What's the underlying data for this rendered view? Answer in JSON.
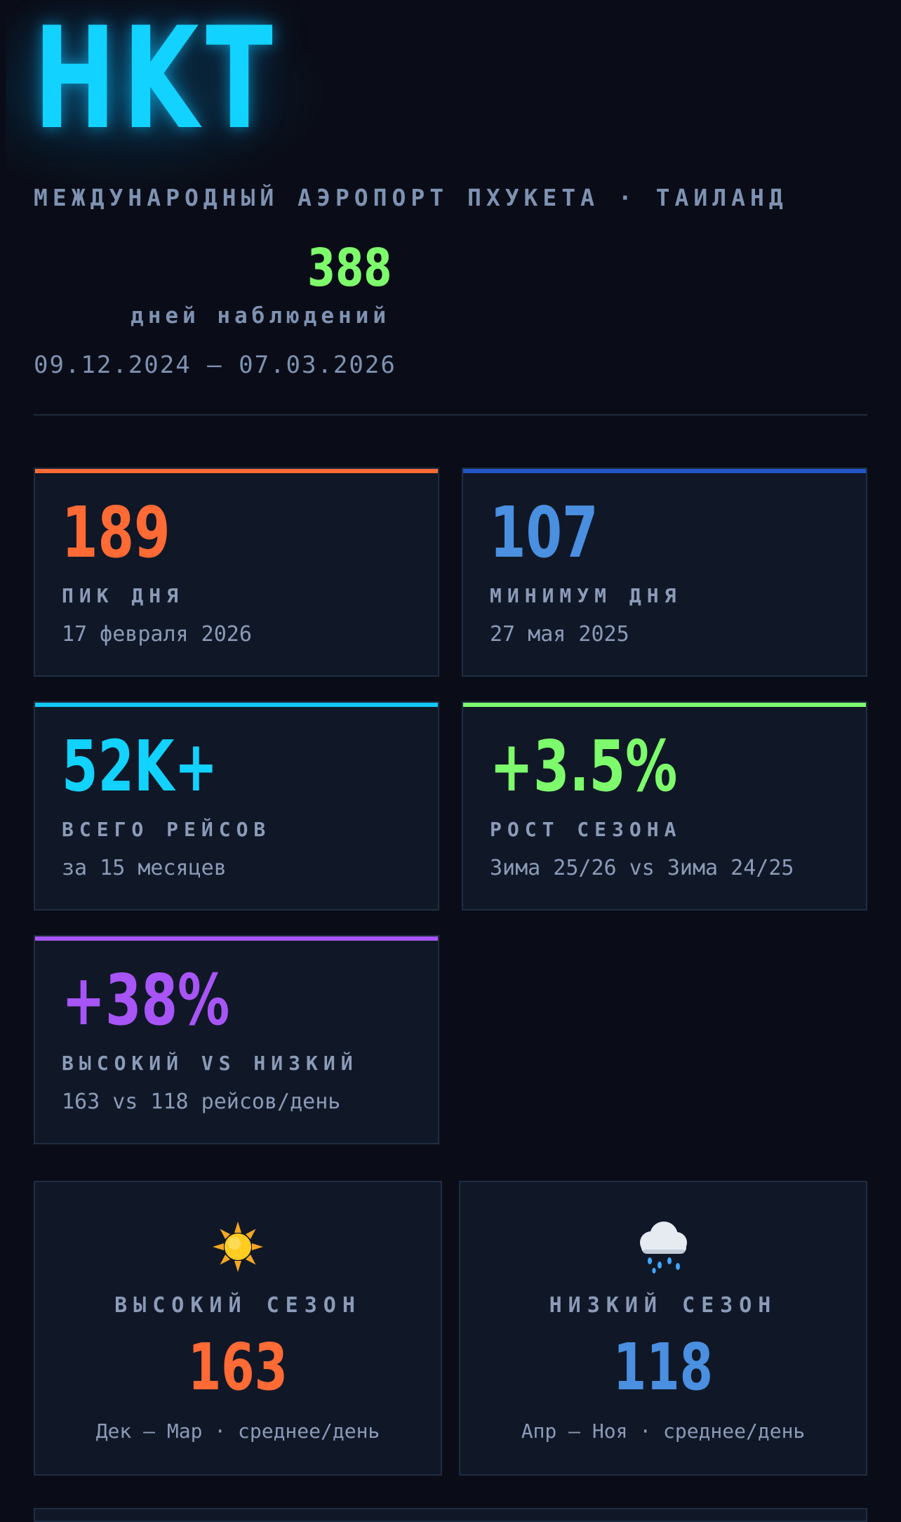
{
  "header": {
    "code": "HKT",
    "subtitle": "МЕЖДУНАРОДНЫЙ АЭРОПОРТ ПХУКЕТА · ТАИЛАНД",
    "days_count": "388",
    "days_label": "дней наблюдений",
    "period": "09.12.2024 — 07.03.2026"
  },
  "colors": {
    "background": "#0a0d17",
    "card": "#101827",
    "accent_cyan": "#12d2ff",
    "accent_green": "#7dfb6c",
    "accent_orange": "#ff6a35",
    "accent_blue": "#4a8fe0",
    "accent_purple": "#a855f7"
  },
  "stats": [
    {
      "value": "189",
      "label": "ПИК ДНЯ",
      "sub": "17 февраля 2026",
      "color": "#ff6a35",
      "bar": "#ff6a35"
    },
    {
      "value": "107",
      "label": "МИНИМУМ ДНЯ",
      "sub": "27 мая 2025",
      "color": "#4a8fe0",
      "bar": "#2456c8"
    },
    {
      "value": "52K+",
      "label": "ВСЕГО РЕЙСОВ",
      "sub": "за 15 месяцев",
      "color": "#12d2ff",
      "bar": "#12c8f5"
    },
    {
      "value": "+3.5%",
      "label": "РОСТ СЕЗОНА",
      "sub": "Зима 25/26 vs Зима 24/25",
      "color": "#7dfb6c",
      "bar": "#7dfb6c"
    },
    {
      "value": "+38%",
      "label": "ВЫСОКИЙ VS НИЗКИЙ",
      "sub": "163 vs 118 рейсов/день",
      "color": "#a855f7",
      "bar": "#a855f7"
    }
  ],
  "seasons": [
    {
      "icon": "sun-icon",
      "title": "ВЫСОКИЙ СЕЗОН",
      "value": "163",
      "sub": "Дек — Мар · среднее/день",
      "color": "#ff6a35"
    },
    {
      "icon": "rain-cloud-icon",
      "title": "НИЗКИЙ СЕЗОН",
      "value": "118",
      "sub": "Апр — Ноя · среднее/день",
      "color": "#4a8fe0"
    }
  ]
}
